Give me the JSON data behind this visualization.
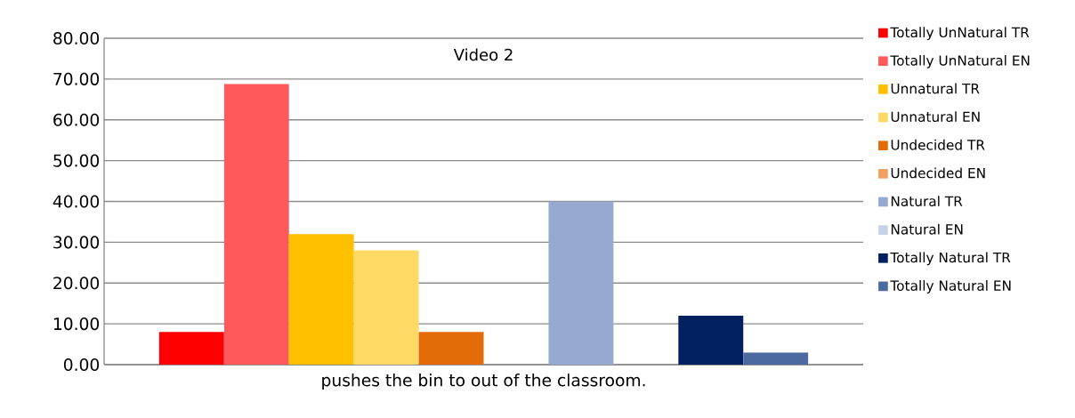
{
  "chart_data": {
    "type": "bar",
    "title": "Video 2",
    "categories": [
      "pushes the bin to out of the classroom."
    ],
    "series": [
      {
        "name": "Totally  UnNatural TR",
        "color": "#ff0000",
        "values": [
          8
        ]
      },
      {
        "name": "Totally  UnNatural EN",
        "color": "#ff5a5a",
        "values": [
          68.75
        ]
      },
      {
        "name": "Unnatural TR",
        "color": "#ffc000",
        "values": [
          32
        ]
      },
      {
        "name": "Unnatural EN",
        "color": "#ffd966",
        "values": [
          28
        ]
      },
      {
        "name": "Undecided TR",
        "color": "#e36c09",
        "values": [
          8
        ]
      },
      {
        "name": "Undecided EN",
        "color": "#f0a060",
        "values": [
          0
        ]
      },
      {
        "name": "Natural TR",
        "color": "#95a9d1",
        "values": [
          40
        ]
      },
      {
        "name": "Natural EN",
        "color": "#c5d3ea",
        "values": [
          0
        ]
      },
      {
        "name": "Totally  Natural TR",
        "color": "#002060",
        "values": [
          12
        ]
      },
      {
        "name": "Totally  Natural EN",
        "color": "#4d6aa0",
        "values": [
          3
        ]
      }
    ],
    "ylim": [
      0,
      80
    ],
    "yticks": [
      {
        "value": 0,
        "label": "0.00"
      },
      {
        "value": 10,
        "label": "10.00"
      },
      {
        "value": 20,
        "label": "20.00"
      },
      {
        "value": 30,
        "label": "30.00"
      },
      {
        "value": 40,
        "label": "40.00"
      },
      {
        "value": 50,
        "label": "50.00"
      },
      {
        "value": 60,
        "label": "60.00"
      },
      {
        "value": 70,
        "label": "70.00"
      },
      {
        "value": 80,
        "label": "80.00"
      }
    ],
    "grid": "y",
    "legend": "right"
  }
}
